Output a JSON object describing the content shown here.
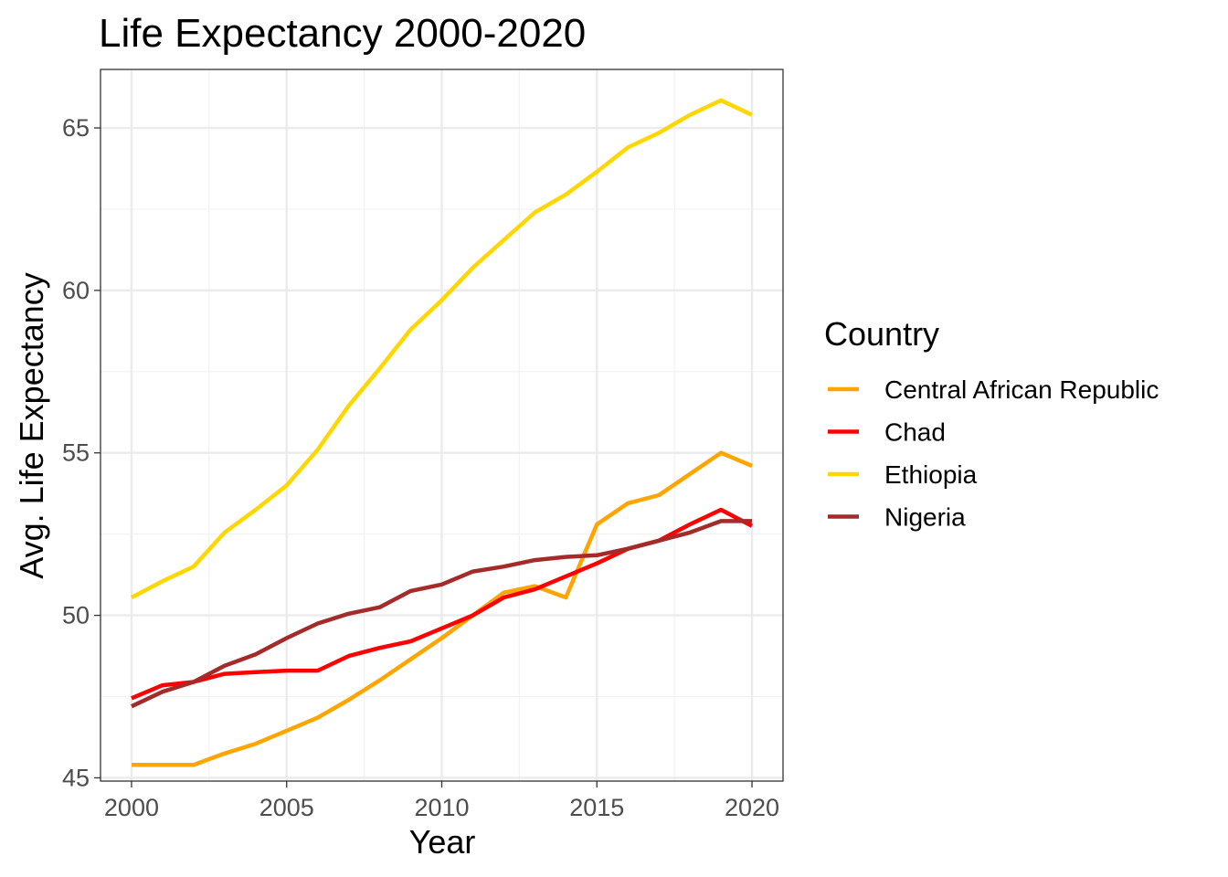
{
  "chart_data": {
    "type": "line",
    "title": "Life Expectancy 2000-2020",
    "xlabel": "Year",
    "ylabel": "Avg. Life Expectancy",
    "x": [
      2000,
      2001,
      2002,
      2003,
      2004,
      2005,
      2006,
      2007,
      2008,
      2009,
      2010,
      2011,
      2012,
      2013,
      2014,
      2015,
      2016,
      2017,
      2018,
      2019,
      2020
    ],
    "xlim": [
      1999,
      2021
    ],
    "ylim": [
      44.9,
      66.8
    ],
    "x_ticks": [
      2000,
      2005,
      2010,
      2015,
      2020
    ],
    "y_ticks": [
      45,
      50,
      55,
      60,
      65
    ],
    "grid": true,
    "legend": {
      "title": "Country",
      "placement": "right"
    },
    "series": [
      {
        "name": "Central African Republic",
        "color": "#FFA500",
        "values": [
          45.4,
          45.4,
          45.4,
          45.75,
          46.05,
          46.45,
          46.85,
          47.4,
          48.0,
          48.65,
          49.3,
          50.0,
          50.7,
          50.9,
          50.55,
          52.8,
          53.45,
          53.7,
          54.35,
          55.0,
          54.6
        ]
      },
      {
        "name": "Chad",
        "color": "#FF0000",
        "values": [
          47.45,
          47.85,
          47.95,
          48.2,
          48.25,
          48.3,
          48.3,
          48.75,
          49.0,
          49.2,
          49.6,
          50.0,
          50.55,
          50.8,
          51.2,
          51.6,
          52.05,
          52.3,
          52.8,
          53.25,
          52.75
        ]
      },
      {
        "name": "Ethiopia",
        "color": "#FFD700",
        "values": [
          50.55,
          51.05,
          51.5,
          52.55,
          53.25,
          54.0,
          55.1,
          56.45,
          57.6,
          58.8,
          59.7,
          60.7,
          61.55,
          62.4,
          62.95,
          63.65,
          64.4,
          64.85,
          65.4,
          65.85,
          65.4
        ]
      },
      {
        "name": "Nigeria",
        "color": "#A52A2A",
        "values": [
          47.2,
          47.65,
          47.95,
          48.45,
          48.8,
          49.3,
          49.75,
          50.05,
          50.25,
          50.75,
          50.95,
          51.35,
          51.5,
          51.7,
          51.8,
          51.85,
          52.05,
          52.3,
          52.55,
          52.9,
          52.9
        ]
      }
    ]
  }
}
